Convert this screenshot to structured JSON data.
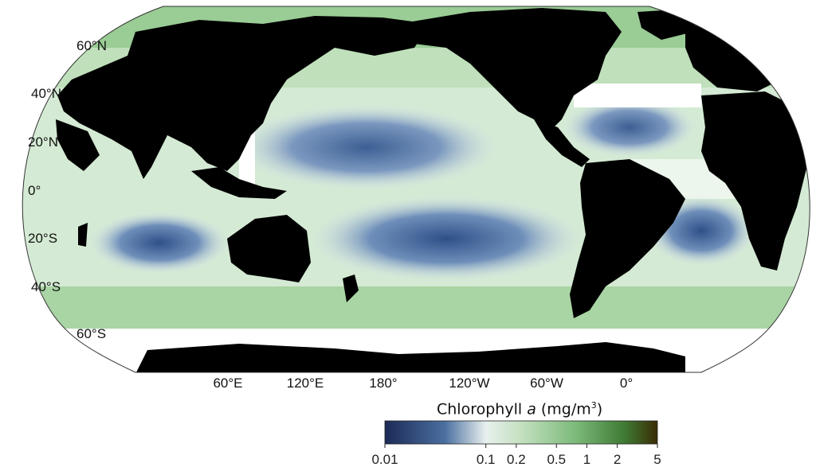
{
  "map": {
    "projection": "Robinson",
    "land_color": "#000000",
    "no_data_color": "#ffffff",
    "lat_labels": [
      "60°N",
      "40°N",
      "20°N",
      "0°",
      "20°S",
      "40°S",
      "60°S"
    ],
    "lon_labels": [
      "60°E",
      "120°E",
      "180°",
      "120°W",
      "60°W",
      "0°"
    ]
  },
  "colorbar": {
    "title_text": "Chlorophyll",
    "title_variable": "a",
    "title_units_prefix": "(mg/m",
    "title_units_exp": "3",
    "title_units_suffix": ")",
    "scale": "log",
    "range": [
      0.01,
      5
    ],
    "tick_labels": [
      "0.01",
      "0.1",
      "0.2",
      "0.5",
      "1",
      "2",
      "5"
    ],
    "tick_values": [
      0.01,
      0.1,
      0.2,
      0.5,
      1,
      2,
      5
    ],
    "colors": [
      "#1c2a56",
      "#4a6fa0",
      "#e8f0ee",
      "#c4e0c0",
      "#7cba7a",
      "#3f7a34",
      "#3a2c05"
    ]
  }
}
